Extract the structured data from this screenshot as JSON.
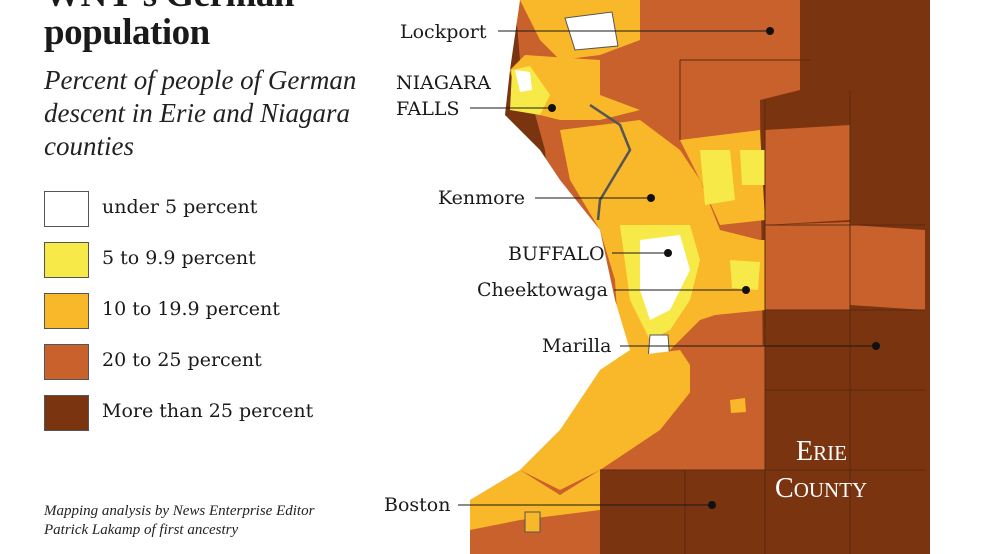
{
  "title": "WNY's German population",
  "subtitle": "Percent of people of German descent in Erie and Niagara counties",
  "legend": [
    {
      "label": "under 5 percent",
      "color": "#ffffff"
    },
    {
      "label": "5 to 9.9 percent",
      "color": "#f7ea48"
    },
    {
      "label": "10 to 19.9 percent",
      "color": "#f8b829"
    },
    {
      "label": "20 to 25 percent",
      "color": "#c9612c"
    },
    {
      "label": "More than 25 percent",
      "color": "#7a3410"
    }
  ],
  "places": {
    "lockport": "Lockport",
    "niagara_falls_1": "NIAGARA",
    "niagara_falls_2": "FALLS",
    "kenmore": "Kenmore",
    "buffalo": "BUFFALO",
    "cheektowaga": "Cheektowaga",
    "marilla": "Marilla",
    "boston": "Boston"
  },
  "county": {
    "line1": "Erie",
    "line2": "County"
  },
  "credit": "Mapping analysis by News Enterprise Editor Patrick Lakamp of first ancestry"
}
